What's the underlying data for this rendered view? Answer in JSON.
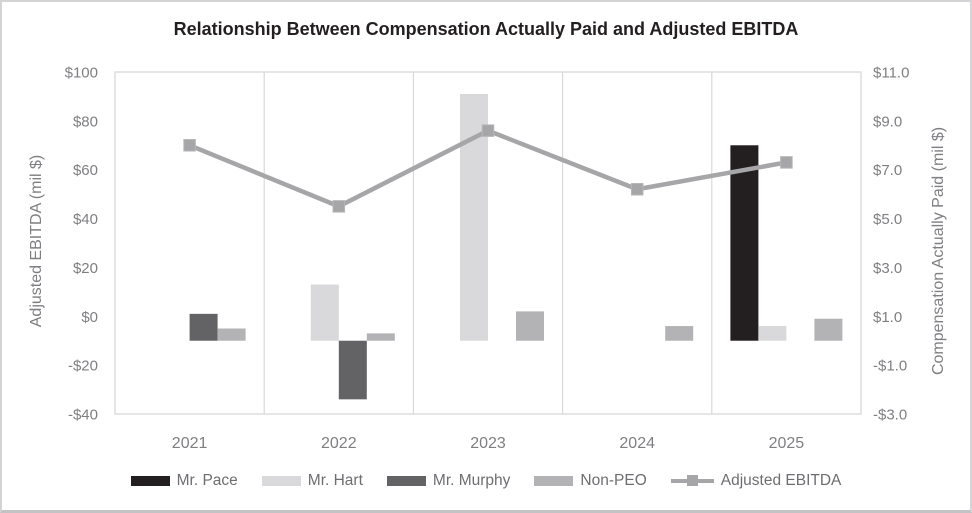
{
  "chart_data": {
    "type": "combo",
    "title": "Relationship Between Compensation Actually Paid and Adjusted EBITDA",
    "categories": [
      "2021",
      "2022",
      "2023",
      "2024",
      "2025"
    ],
    "left_axis": {
      "label": "Adjusted EBITDA (mil $)",
      "min": -40,
      "max": 100,
      "step": 20,
      "tick_labels": [
        "$100",
        "$80",
        "$60",
        "$40",
        "$20",
        "$0",
        "-$20",
        "-$40"
      ]
    },
    "right_axis": {
      "label": "Compensation Actually Paid (mil $)",
      "min": -3,
      "max": 11,
      "step": 2,
      "tick_labels": [
        "$11.0",
        "$9.0",
        "$7.0",
        "$5.0",
        "$3.0",
        "$1.0",
        "-$1.0",
        "-$3.0"
      ]
    },
    "bar_series": [
      {
        "name": "Mr. Pace",
        "color": "#231f20",
        "axis": "right",
        "values": [
          null,
          null,
          null,
          null,
          8.0
        ]
      },
      {
        "name": "Mr. Hart",
        "color": "#d9d9db",
        "axis": "right",
        "values": [
          null,
          2.3,
          10.1,
          null,
          0.6
        ]
      },
      {
        "name": "Mr. Murphy",
        "color": "#636366",
        "axis": "right",
        "values": [
          1.1,
          -2.4,
          null,
          null,
          null
        ]
      },
      {
        "name": "Non-PEO",
        "color": "#b3b3b6",
        "axis": "right",
        "values": [
          0.5,
          0.3,
          1.2,
          0.6,
          0.9
        ]
      }
    ],
    "line_series": [
      {
        "name": "Adjusted EBITDA",
        "color": "#a6a6a9",
        "axis": "left",
        "values": [
          70,
          45,
          76,
          52,
          63
        ]
      }
    ],
    "legend": {
      "position": "bottom",
      "items": [
        "Mr. Pace",
        "Mr. Hart",
        "Mr. Murphy",
        "Non-PEO",
        "Adjusted EBITDA"
      ]
    },
    "grid": {
      "horizontal": false,
      "vertical": true
    },
    "ylim_left": [
      -40,
      100
    ],
    "ylim_right": [
      -3,
      11
    ]
  },
  "colors": {
    "grid": "#d9d9d9",
    "axis_text": "#7f7f83",
    "title_text": "#231f20",
    "legend_text": "#6e6e72",
    "line": "#a6a6a9",
    "marker_edge": "#b6b6b9"
  }
}
